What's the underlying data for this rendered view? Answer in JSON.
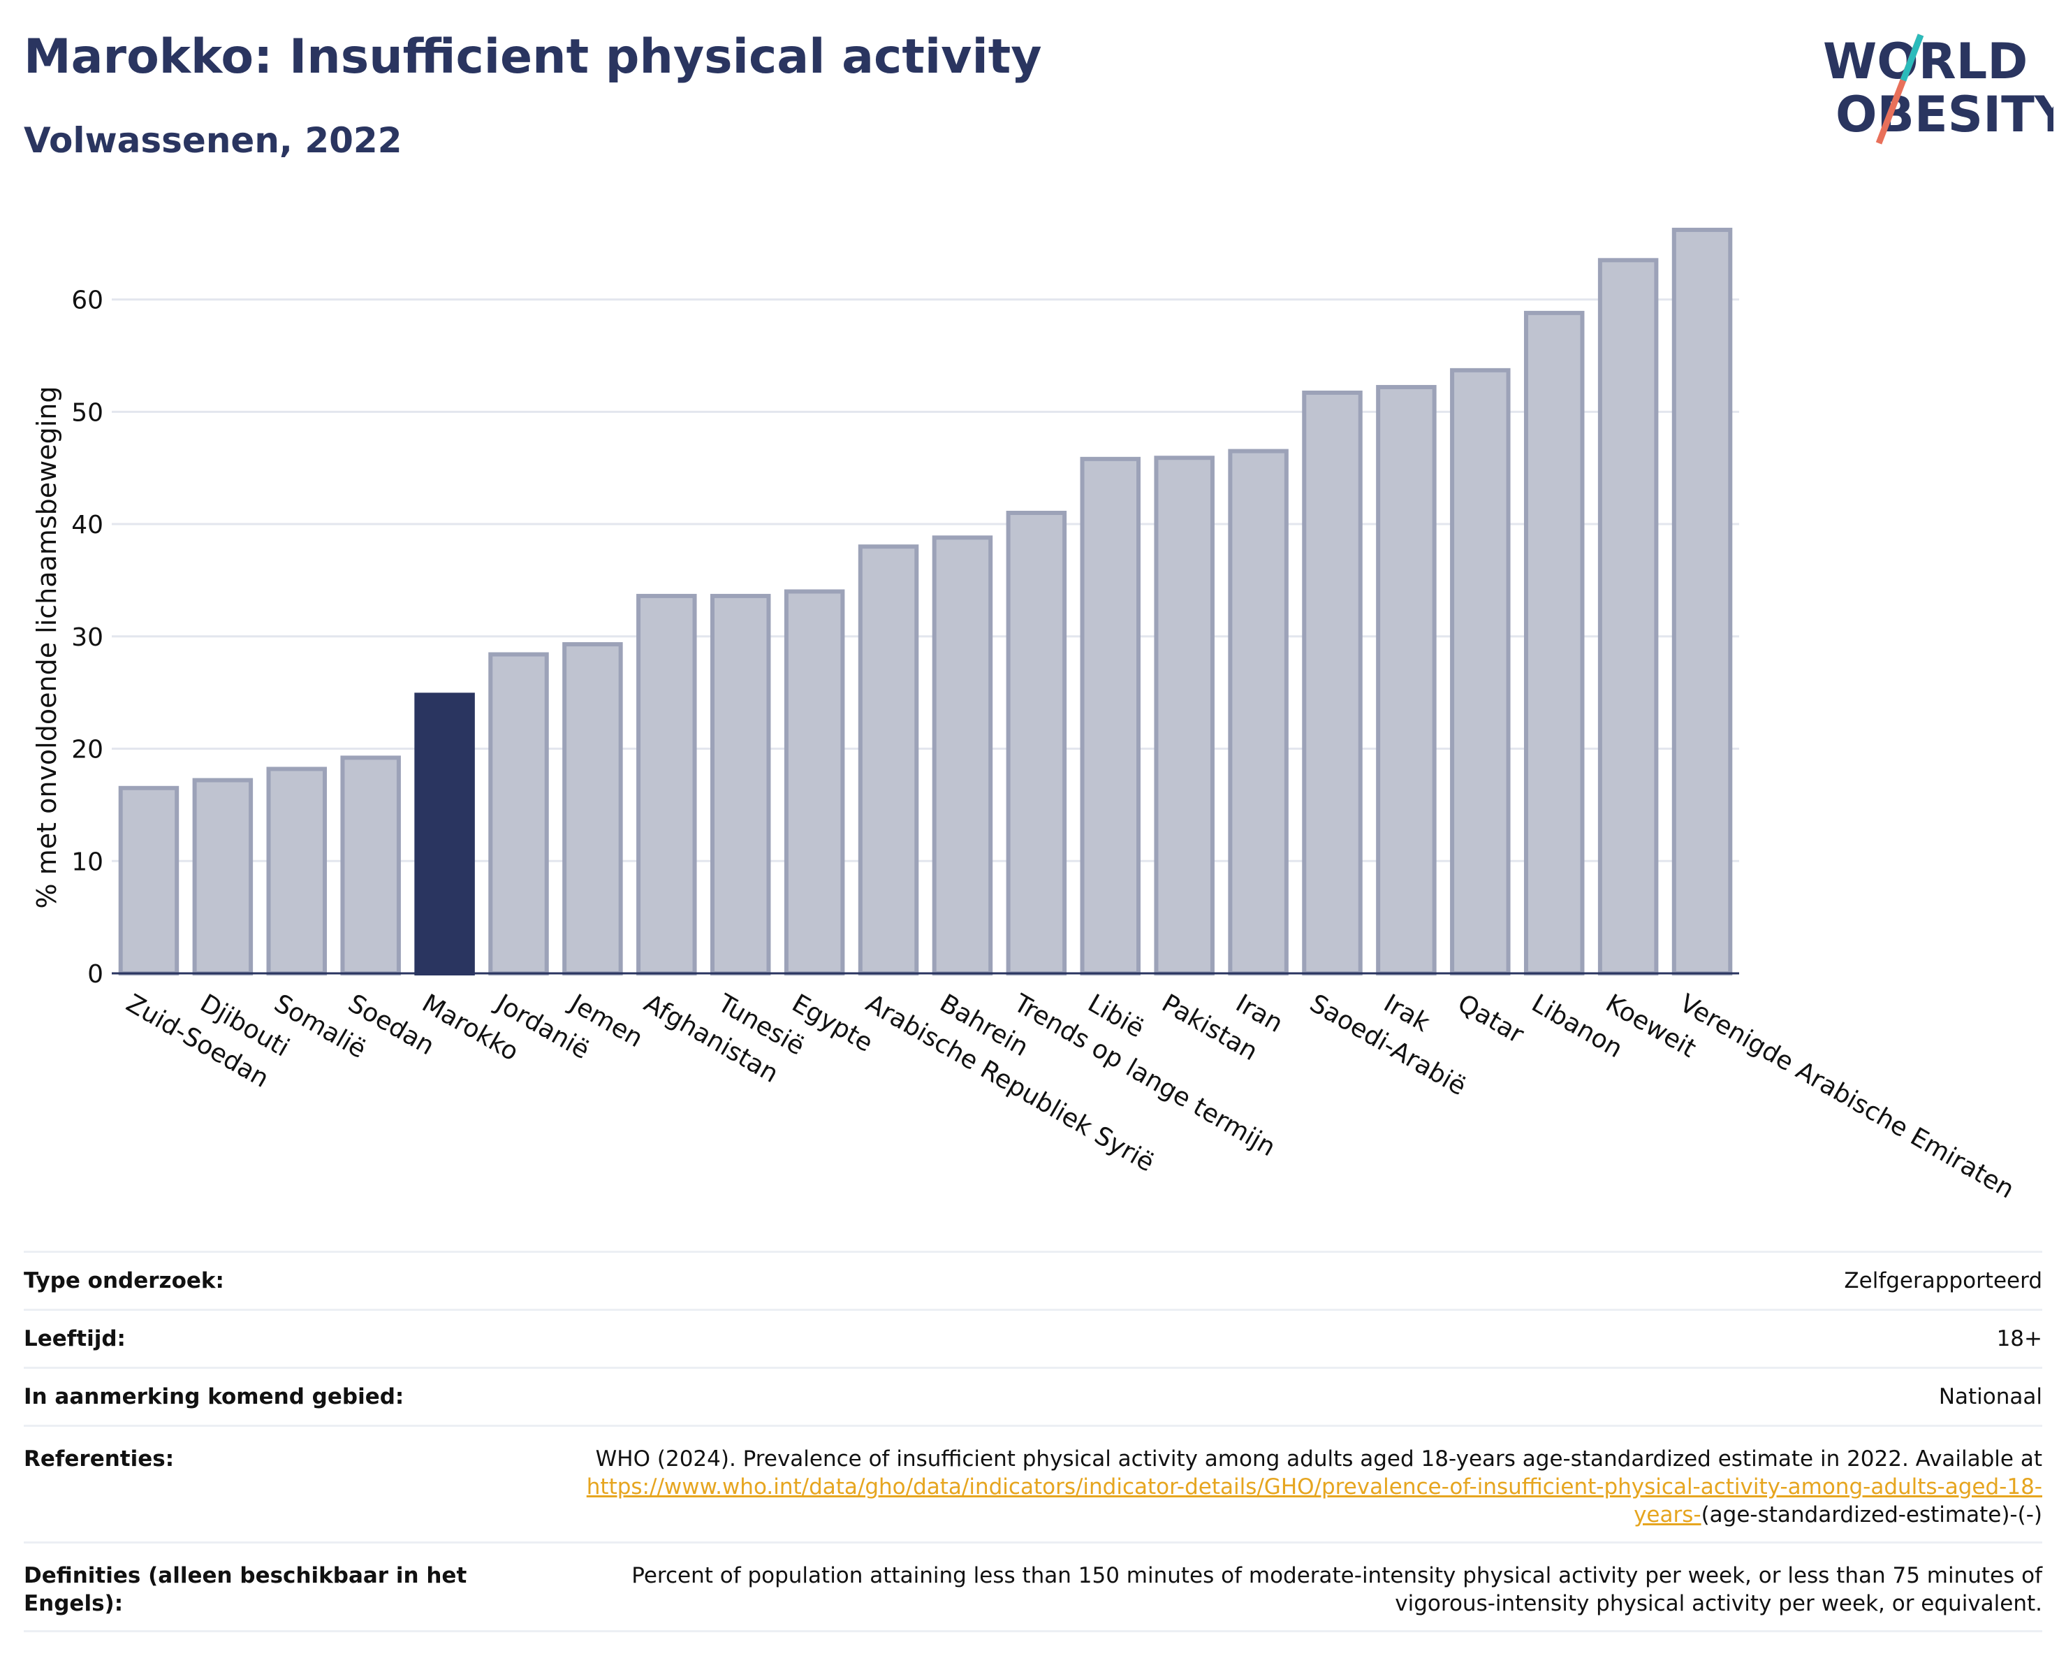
{
  "header": {
    "title": "Marokko: Insufficient physical activity",
    "subtitle": "Volwassenen, 2022"
  },
  "logo": {
    "line1": "WORLD",
    "line2": "OBESITY"
  },
  "colors": {
    "highlight": "#2a3560",
    "bar": "#bfc3d0",
    "bar_stroke": "#9ca2b8",
    "link": "#e6a51f"
  },
  "chart_data": {
    "type": "bar",
    "title": "Marokko: Insufficient physical activity",
    "subtitle": "Volwassenen, 2022",
    "xlabel": "",
    "ylabel": "% met onvoldoende lichaamsbeweging",
    "ylim": [
      0,
      68
    ],
    "yticks": [
      0,
      10,
      20,
      30,
      40,
      50,
      60
    ],
    "grid": true,
    "categories": [
      "Zuid-Soedan",
      "Djibouti",
      "Somalië",
      "Soedan",
      "Marokko",
      "Jordanië",
      "Jemen",
      "Afghanistan",
      "Tunesië",
      "Egypte",
      "Arabische Republiek Syrië",
      "Bahrein",
      "Trends op lange termijn",
      "Libië",
      "Pakistan",
      "Iran",
      "Saoedi-Arabië",
      "Irak",
      "Qatar",
      "Libanon",
      "Koeweit",
      "Verenigde Arabische Emiraten"
    ],
    "values": [
      16.5,
      17.2,
      18.2,
      19.2,
      24.8,
      28.4,
      29.3,
      33.6,
      33.6,
      34.0,
      38.0,
      38.8,
      41.0,
      45.8,
      45.9,
      46.5,
      51.7,
      52.2,
      53.7,
      58.8,
      63.5,
      66.2
    ],
    "highlight": "Marokko"
  },
  "meta": [
    {
      "label": "Type onderzoek:",
      "value": "Zelfgerapporteerd"
    },
    {
      "label": "Leeftijd:",
      "value": "18+"
    },
    {
      "label": "In aanmerking komend gebied:",
      "value": "Nationaal"
    },
    {
      "label": "Referenties:",
      "value_text": "WHO (2024). Prevalence of insufficient physical activity among adults aged 18-years age-standardized estimate in 2022. Available at",
      "value_link": "https://www.who.int/data/gho/data/indicators/indicator-details/GHO/prevalence-of-insufficient-physical-activity-among-adults-aged-18-years-",
      "value_tail": "(age-standardized-estimate)-(-)"
    },
    {
      "label": "Definities (alleen beschikbaar in het Engels):",
      "value": "Percent of population attaining less than 150 minutes of moderate-intensity physical activity per week, or less than 75 minutes of vigorous-intensity physical activity per week, or equivalent."
    }
  ]
}
